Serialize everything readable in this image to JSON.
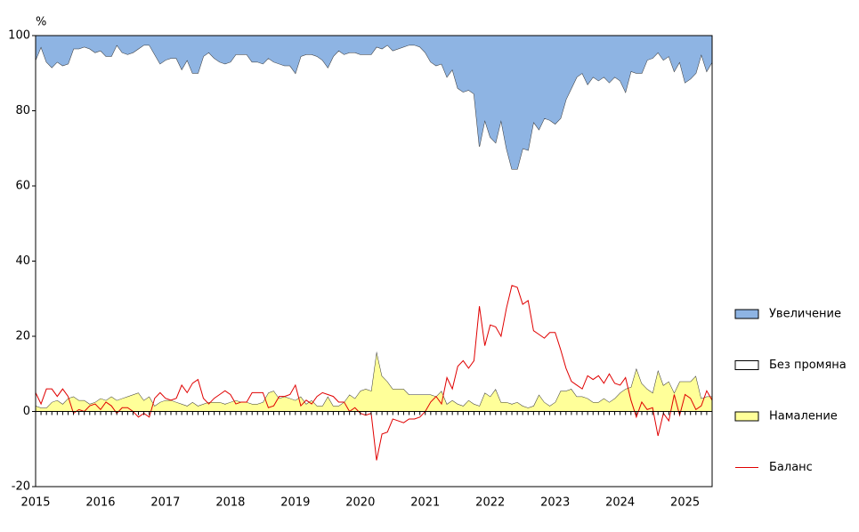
{
  "chart_data": {
    "type": "area",
    "ylabel": "%",
    "categories": [
      "2015",
      null,
      null,
      null,
      null,
      null,
      null,
      null,
      null,
      null,
      null,
      null,
      "2016",
      null,
      null,
      null,
      null,
      null,
      null,
      null,
      null,
      null,
      null,
      null,
      "2017",
      null,
      null,
      null,
      null,
      null,
      null,
      null,
      null,
      null,
      null,
      null,
      "2018",
      null,
      null,
      null,
      null,
      null,
      null,
      null,
      null,
      null,
      null,
      null,
      "2019",
      null,
      null,
      null,
      null,
      null,
      null,
      null,
      null,
      null,
      null,
      null,
      "2020",
      null,
      null,
      null,
      null,
      null,
      null,
      null,
      null,
      null,
      null,
      null,
      "2021",
      null,
      null,
      null,
      null,
      null,
      null,
      null,
      null,
      null,
      null,
      null,
      "2022",
      null,
      null,
      null,
      null,
      null,
      null,
      null,
      null,
      null,
      null,
      null,
      "2023",
      null,
      null,
      null,
      null,
      null,
      null,
      null,
      null,
      null,
      null,
      null,
      "2024",
      null,
      null,
      null,
      null,
      null,
      null,
      null,
      null,
      null,
      null,
      null,
      "2025",
      null,
      null,
      null,
      null,
      null
    ],
    "ylim": [
      -20,
      100
    ],
    "yticks": [
      -20,
      0,
      20,
      40,
      60,
      80,
      100
    ],
    "series": [
      {
        "name": "Увеличение",
        "kind": "area",
        "color": "#8eb4e3",
        "values": [
          6.5,
          3,
          7,
          8.5,
          7,
          8,
          7.5,
          3.5,
          3.5,
          3,
          3.5,
          4.5,
          4,
          5.5,
          5.5,
          2.5,
          4.5,
          5,
          4.5,
          3.5,
          2.5,
          2.5,
          5,
          7.5,
          6.5,
          6,
          6,
          9,
          6.5,
          10,
          10,
          5.5,
          4.5,
          6,
          7,
          7.5,
          7,
          5,
          5,
          5,
          7,
          7,
          7.5,
          6,
          7,
          7.5,
          8,
          8,
          10,
          5.5,
          5,
          5,
          5.5,
          6.5,
          8.5,
          5.5,
          4,
          5,
          4.5,
          4.5,
          5,
          5,
          5,
          3,
          3.5,
          2.5,
          4,
          3.5,
          3,
          2.5,
          2.5,
          3,
          4.5,
          7,
          8,
          7.5,
          11,
          9,
          14,
          15,
          14.5,
          15.5,
          29.5,
          22.5,
          27,
          28.5,
          22.5,
          30,
          35.5,
          35.5,
          30,
          30.5,
          23,
          25,
          22,
          22.5,
          23.5,
          22,
          17,
          14,
          11,
          10,
          13,
          11,
          12,
          11,
          12.5,
          11,
          12,
          15,
          9.5,
          10,
          10,
          6.5,
          6,
          4.5,
          6.5,
          5.5,
          9.5,
          7,
          12.5,
          11.5,
          10,
          5,
          9.5,
          7
        ]
      },
      {
        "name": "Без промяна",
        "kind": "area",
        "color": "#ffffff",
        "values": [
          92,
          96,
          92,
          89,
          90,
          90,
          89,
          92.5,
          93.5,
          94,
          94.5,
          93,
          92.5,
          91.5,
          90.5,
          94.5,
          92,
          91,
          91,
          91.5,
          94.5,
          93.5,
          93.5,
          90,
          90.5,
          91,
          91.5,
          89,
          92,
          87.5,
          88.5,
          92.5,
          93,
          91.5,
          90.5,
          90.5,
          90.5,
          92,
          92.5,
          92.5,
          91,
          91,
          90,
          89,
          87.5,
          89,
          88,
          88.5,
          87,
          90.5,
          93,
          92,
          93,
          92,
          87.5,
          93,
          94.5,
          92.5,
          91,
          92,
          89.5,
          89,
          89.5,
          81,
          87,
          89.5,
          90,
          90.5,
          91,
          93,
          93,
          92.5,
          91,
          88.5,
          88,
          87,
          87,
          88,
          84,
          83.5,
          82.5,
          82.5,
          69,
          72.5,
          69,
          65.5,
          75,
          67.5,
          62.5,
          62,
          68.5,
          68.5,
          75.5,
          70.5,
          75.5,
          76,
          74,
          72.5,
          77.5,
          80,
          85,
          86,
          83.5,
          86.5,
          85.5,
          85.5,
          85,
          85.5,
          83,
          79,
          84,
          78.5,
          82.5,
          87.5,
          89,
          84.5,
          86.5,
          86.5,
          85.5,
          85,
          79.5,
          80.5,
          80.5,
          91.5,
          86.5,
          89
        ]
      },
      {
        "name": "Намаление",
        "kind": "area",
        "color": "#ffff99",
        "values": [
          1.5,
          1,
          1,
          2.5,
          3,
          2,
          3.5,
          4,
          3,
          3,
          2,
          2.5,
          3.5,
          3,
          4,
          3,
          3.5,
          4,
          4.5,
          5,
          3,
          4,
          1.5,
          2.5,
          3,
          3,
          2.5,
          2,
          1.5,
          2.5,
          1.5,
          2,
          2.5,
          2.5,
          2.5,
          2,
          2.5,
          3,
          2.5,
          2.5,
          2,
          2,
          2.5,
          5,
          5.5,
          3.5,
          4,
          3.5,
          3,
          4,
          2,
          3,
          1.5,
          1.5,
          4,
          1.5,
          1.5,
          2.5,
          4.5,
          3.5,
          5.5,
          6,
          5.5,
          16,
          9.5,
          8,
          6,
          6,
          6,
          4.5,
          4.5,
          4.5,
          4.5,
          4.5,
          4,
          5.5,
          2,
          3,
          2,
          1.5,
          3,
          2,
          1.5,
          5,
          4,
          6,
          2.5,
          2.5,
          2,
          2.5,
          1.5,
          1,
          1.5,
          4.5,
          2.5,
          1.5,
          2.5,
          5.5,
          5.5,
          6,
          4,
          4,
          3.5,
          2.5,
          2.5,
          3.5,
          2.5,
          3.5,
          5,
          6,
          6.5,
          11.5,
          7.5,
          6,
          5,
          11,
          7,
          8,
          5,
          8,
          8,
          8,
          9.5,
          3.5,
          4,
          4
        ]
      },
      {
        "name": "Баланс",
        "kind": "line",
        "color": "#e00000",
        "values": [
          5,
          2,
          6,
          6,
          4,
          6,
          4,
          -0.5,
          0.5,
          0,
          1.5,
          2,
          0.5,
          2.5,
          1.5,
          -0.5,
          1,
          1,
          0,
          -1.5,
          -0.5,
          -1.5,
          3.5,
          5,
          3.5,
          3,
          3.5,
          7,
          5,
          7.5,
          8.5,
          3.5,
          2,
          3.5,
          4.5,
          5.5,
          4.5,
          2,
          2.5,
          2.5,
          5,
          5,
          5,
          1,
          1.5,
          4,
          4,
          4.5,
          7,
          1.5,
          3,
          2,
          4,
          5,
          4.5,
          4,
          2.5,
          2.5,
          0,
          1,
          -0.5,
          -1,
          -0.5,
          -13,
          -6,
          -5.5,
          -2,
          -2.5,
          -3,
          -2,
          -2,
          -1.5,
          0,
          2.5,
          4,
          2,
          9,
          6,
          12,
          13.5,
          11.5,
          13.5,
          28,
          17.5,
          23,
          22.5,
          20,
          27.5,
          33.5,
          33,
          28.5,
          29.5,
          21.5,
          20.5,
          19.5,
          21,
          21,
          16.5,
          11.5,
          8,
          7,
          6,
          9.5,
          8.5,
          9.5,
          7.5,
          10,
          7.5,
          7,
          9,
          3,
          -1.5,
          2.5,
          0.5,
          1,
          -6.5,
          -0.5,
          -2.5,
          4.5,
          -1,
          4.5,
          3.5,
          0.5,
          1.5,
          5.5,
          3
        ]
      }
    ]
  }
}
